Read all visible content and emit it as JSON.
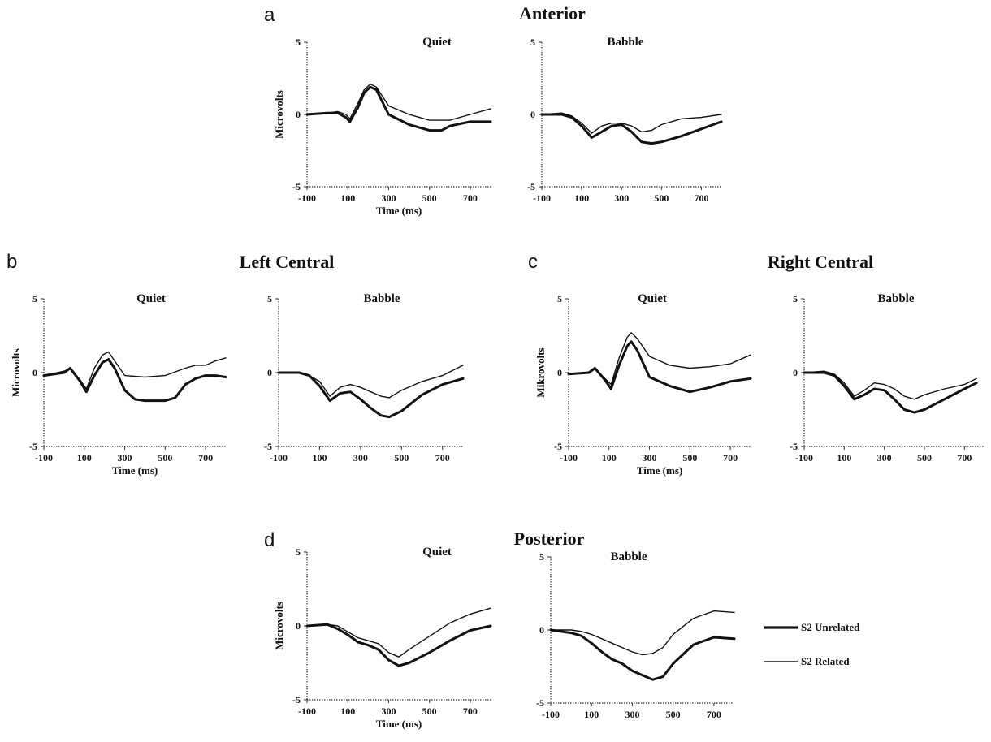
{
  "legend": {
    "items": [
      {
        "label": "S2 Unrelated",
        "width": 3.2
      },
      {
        "label": "S2 Related",
        "width": 1.4
      }
    ]
  },
  "chart_data": [
    {
      "type": "line",
      "letter": "a",
      "region": "Anterior",
      "condition": "Quiet",
      "xlabel": "Time (ms)",
      "ylabel": "Microvolts",
      "xlim": [
        -100,
        800
      ],
      "ylim": [
        -5,
        5
      ],
      "xticks": [
        "-100",
        "100",
        "300",
        "500",
        "700"
      ],
      "yticks": [
        "5",
        "0",
        "-5"
      ],
      "series": [
        {
          "name": "S2 Unrelated",
          "x": [
            -100,
            0,
            50,
            90,
            110,
            150,
            180,
            210,
            240,
            300,
            400,
            500,
            560,
            600,
            700,
            800
          ],
          "y": [
            0,
            0.1,
            0.1,
            -0.2,
            -0.5,
            0.5,
            1.5,
            1.9,
            1.7,
            0,
            -0.7,
            -1.1,
            -1.1,
            -0.8,
            -0.5,
            -0.5
          ]
        },
        {
          "name": "S2 Related",
          "x": [
            -100,
            0,
            50,
            90,
            110,
            150,
            180,
            210,
            240,
            300,
            400,
            500,
            600,
            700,
            800
          ],
          "y": [
            0,
            0.1,
            0.2,
            0,
            -0.3,
            0.8,
            1.7,
            2.1,
            1.9,
            0.6,
            0,
            -0.4,
            -0.4,
            0,
            0.4
          ]
        }
      ]
    },
    {
      "type": "line",
      "letter": "",
      "region": "",
      "condition": "Babble",
      "xlabel": "",
      "ylabel": "",
      "xlim": [
        -100,
        800
      ],
      "ylim": [
        -5,
        5
      ],
      "xticks": [
        "-100",
        "100",
        "300",
        "500",
        "700"
      ],
      "yticks": [
        "5",
        "0",
        "-5"
      ],
      "series": [
        {
          "name": "S2 Unrelated",
          "x": [
            -100,
            0,
            50,
            100,
            150,
            200,
            250,
            300,
            350,
            400,
            450,
            500,
            600,
            700,
            800
          ],
          "y": [
            0,
            0,
            -0.2,
            -0.8,
            -1.6,
            -1.2,
            -0.8,
            -0.7,
            -1.2,
            -1.9,
            -2.0,
            -1.9,
            -1.5,
            -1.0,
            -0.5
          ]
        },
        {
          "name": "S2 Related",
          "x": [
            -100,
            0,
            50,
            100,
            150,
            200,
            250,
            300,
            350,
            400,
            450,
            500,
            600,
            700,
            800
          ],
          "y": [
            0,
            0.1,
            -0.1,
            -0.6,
            -1.3,
            -0.8,
            -0.6,
            -0.6,
            -0.8,
            -1.2,
            -1.1,
            -0.7,
            -0.3,
            -0.2,
            0
          ]
        }
      ]
    },
    {
      "type": "line",
      "letter": "b",
      "region": "Left Central",
      "condition": "Quiet",
      "xlabel": "Time (ms)",
      "ylabel": "Microvolts",
      "xlim": [
        -100,
        800
      ],
      "ylim": [
        -5,
        5
      ],
      "xticks": [
        "-100",
        "100",
        "300",
        "500",
        "700"
      ],
      "yticks": [
        "5",
        "0",
        "-5"
      ],
      "series": [
        {
          "name": "S2 Unrelated",
          "x": [
            -100,
            0,
            30,
            80,
            110,
            150,
            190,
            220,
            250,
            300,
            350,
            400,
            500,
            550,
            600,
            650,
            700,
            750,
            800
          ],
          "y": [
            -0.2,
            0,
            0.3,
            -0.6,
            -1.3,
            -0.2,
            0.7,
            0.9,
            0.3,
            -1.2,
            -1.8,
            -1.9,
            -1.9,
            -1.7,
            -0.8,
            -0.4,
            -0.2,
            -0.2,
            -0.3
          ]
        },
        {
          "name": "S2 Related",
          "x": [
            -100,
            0,
            30,
            80,
            110,
            150,
            190,
            220,
            250,
            300,
            400,
            500,
            600,
            650,
            700,
            750,
            800
          ],
          "y": [
            -0.2,
            0.1,
            0.3,
            -0.5,
            -1.1,
            0.3,
            1.2,
            1.4,
            0.8,
            -0.2,
            -0.3,
            -0.2,
            0.3,
            0.5,
            0.5,
            0.8,
            1.0
          ]
        }
      ]
    },
    {
      "type": "line",
      "letter": "",
      "region": "",
      "condition": "Babble",
      "xlabel": "",
      "ylabel": "",
      "xlim": [
        -100,
        800
      ],
      "ylim": [
        -5,
        5
      ],
      "xticks": [
        "-100",
        "100",
        "300",
        "500",
        "700"
      ],
      "yticks": [
        "5",
        "0",
        "-5"
      ],
      "series": [
        {
          "name": "S2 Unrelated",
          "x": [
            -100,
            0,
            50,
            100,
            150,
            200,
            250,
            300,
            350,
            400,
            440,
            500,
            600,
            700,
            800
          ],
          "y": [
            0,
            0,
            -0.2,
            -0.9,
            -1.9,
            -1.4,
            -1.3,
            -1.8,
            -2.4,
            -2.9,
            -3.0,
            -2.6,
            -1.5,
            -0.8,
            -0.4
          ]
        },
        {
          "name": "S2 Related",
          "x": [
            -100,
            0,
            50,
            100,
            150,
            200,
            250,
            300,
            350,
            400,
            440,
            500,
            600,
            700,
            800
          ],
          "y": [
            0,
            0,
            -0.2,
            -0.6,
            -1.6,
            -1.0,
            -0.8,
            -1.0,
            -1.3,
            -1.6,
            -1.7,
            -1.2,
            -0.6,
            -0.2,
            0.5
          ]
        }
      ]
    },
    {
      "type": "line",
      "letter": "c",
      "region": "Right Central",
      "condition": "Quiet",
      "xlabel": "Time (ms)",
      "ylabel": "Mikrovolts",
      "xlim": [
        -100,
        800
      ],
      "ylim": [
        -5,
        5
      ],
      "xticks": [
        "-100",
        "100",
        "300",
        "500",
        "700"
      ],
      "yticks": [
        "5",
        "0",
        "-5"
      ],
      "series": [
        {
          "name": "S2 Unrelated",
          "x": [
            -100,
            0,
            30,
            80,
            110,
            150,
            190,
            210,
            240,
            300,
            400,
            500,
            600,
            700,
            800
          ],
          "y": [
            -0.1,
            0,
            0.3,
            -0.5,
            -1.1,
            0.5,
            1.8,
            2.1,
            1.5,
            -0.3,
            -0.9,
            -1.3,
            -1.0,
            -0.6,
            -0.4
          ]
        },
        {
          "name": "S2 Related",
          "x": [
            -100,
            0,
            30,
            80,
            110,
            150,
            190,
            210,
            240,
            300,
            400,
            500,
            600,
            700,
            800
          ],
          "y": [
            -0.1,
            0,
            0.3,
            -0.4,
            -0.8,
            1.0,
            2.4,
            2.7,
            2.3,
            1.1,
            0.5,
            0.3,
            0.4,
            0.6,
            1.2
          ]
        }
      ]
    },
    {
      "type": "line",
      "letter": "",
      "region": "",
      "condition": "Babble",
      "xlabel": "",
      "ylabel": "",
      "xlim": [
        -100,
        800
      ],
      "ylim": [
        -5,
        5
      ],
      "xticks": [
        "-100",
        "100",
        "300",
        "500",
        "700"
      ],
      "yticks": [
        "5",
        "0",
        "-5"
      ],
      "series": [
        {
          "name": "S2 Unrelated",
          "x": [
            -100,
            0,
            50,
            100,
            150,
            200,
            250,
            300,
            350,
            400,
            450,
            500,
            600,
            700,
            760
          ],
          "y": [
            0,
            0,
            -0.2,
            -0.9,
            -1.8,
            -1.5,
            -1.1,
            -1.2,
            -1.8,
            -2.5,
            -2.7,
            -2.5,
            -1.8,
            -1.1,
            -0.7
          ]
        },
        {
          "name": "S2 Related",
          "x": [
            -100,
            0,
            50,
            100,
            150,
            200,
            250,
            300,
            350,
            400,
            450,
            500,
            600,
            700,
            760
          ],
          "y": [
            0,
            0.1,
            -0.1,
            -0.7,
            -1.6,
            -1.2,
            -0.7,
            -0.8,
            -1.1,
            -1.6,
            -1.8,
            -1.5,
            -1.1,
            -0.8,
            -0.4
          ]
        }
      ]
    },
    {
      "type": "line",
      "letter": "d",
      "region": "Posterior",
      "condition": "Quiet",
      "xlabel": "Time (ms)",
      "ylabel": "Microvolts",
      "xlim": [
        -100,
        800
      ],
      "ylim": [
        -5,
        5
      ],
      "xticks": [
        "-100",
        "100",
        "300",
        "500",
        "700"
      ],
      "yticks": [
        "5",
        "0",
        "-5"
      ],
      "series": [
        {
          "name": "S2 Unrelated",
          "x": [
            -100,
            0,
            50,
            100,
            150,
            200,
            250,
            300,
            350,
            400,
            500,
            600,
            700,
            800
          ],
          "y": [
            0,
            0.1,
            -0.2,
            -0.6,
            -1.1,
            -1.3,
            -1.6,
            -2.3,
            -2.7,
            -2.5,
            -1.8,
            -1.0,
            -0.3,
            0
          ]
        },
        {
          "name": "S2 Related",
          "x": [
            -100,
            0,
            50,
            100,
            150,
            200,
            250,
            300,
            350,
            400,
            500,
            600,
            700,
            800
          ],
          "y": [
            0,
            0.1,
            0,
            -0.4,
            -0.8,
            -1.0,
            -1.2,
            -1.8,
            -2.1,
            -1.6,
            -0.7,
            0.2,
            0.8,
            1.2
          ]
        }
      ]
    },
    {
      "type": "line",
      "letter": "",
      "region": "",
      "condition": "Babble",
      "xlabel": "",
      "ylabel": "",
      "xlim": [
        -100,
        800
      ],
      "ylim": [
        -5,
        5
      ],
      "xticks": [
        "-100",
        "100",
        "300",
        "500",
        "700"
      ],
      "yticks": [
        "5",
        "0",
        "-5"
      ],
      "series": [
        {
          "name": "S2 Unrelated",
          "x": [
            -100,
            0,
            50,
            100,
            150,
            200,
            250,
            300,
            350,
            400,
            450,
            500,
            600,
            700,
            800
          ],
          "y": [
            0,
            -0.2,
            -0.4,
            -0.9,
            -1.5,
            -2.0,
            -2.3,
            -2.8,
            -3.1,
            -3.4,
            -3.2,
            -2.3,
            -1.0,
            -0.5,
            -0.6
          ]
        },
        {
          "name": "S2 Related",
          "x": [
            -100,
            0,
            50,
            100,
            150,
            200,
            250,
            300,
            350,
            400,
            450,
            500,
            600,
            700,
            800
          ],
          "y": [
            0,
            0,
            -0.1,
            -0.3,
            -0.6,
            -0.9,
            -1.2,
            -1.5,
            -1.7,
            -1.6,
            -1.2,
            -0.3,
            0.8,
            1.3,
            1.2
          ]
        }
      ]
    }
  ]
}
